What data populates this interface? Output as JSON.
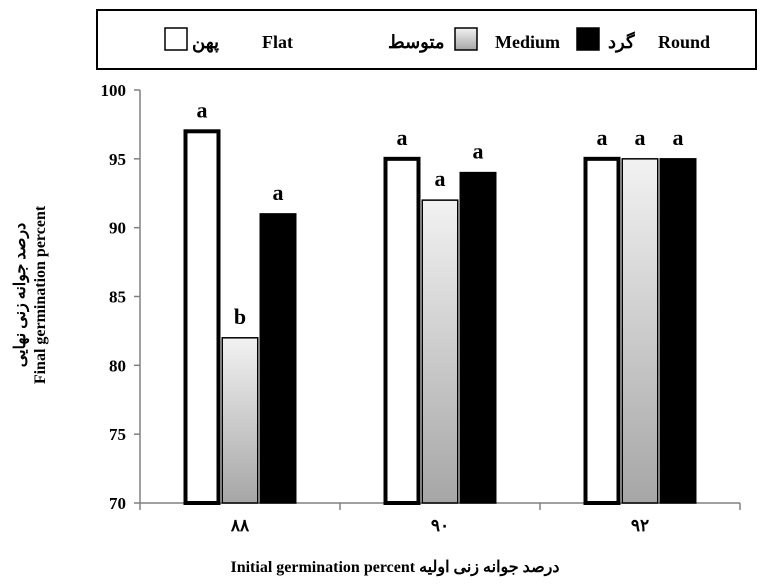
{
  "chart_data": {
    "type": "bar",
    "categories": [
      "۸۸",
      "۹۰",
      "۹۲"
    ],
    "series": [
      {
        "name": "Flat",
        "name_fa": "پهن",
        "values": [
          97,
          95,
          95
        ],
        "fill": "white",
        "labels": [
          "a",
          "a",
          "a"
        ]
      },
      {
        "name": "Medium",
        "name_fa": "متوسط",
        "values": [
          82,
          92,
          95
        ],
        "fill": "gradient-gray",
        "labels": [
          "b",
          "a",
          "a"
        ]
      },
      {
        "name": "Round",
        "name_fa": "گرد",
        "values": [
          91,
          94,
          95
        ],
        "fill": "black",
        "labels": [
          "a",
          "a",
          "a"
        ]
      }
    ],
    "ylim": [
      70,
      100
    ],
    "yticks": [
      70,
      75,
      80,
      85,
      90,
      95,
      100
    ],
    "ylabel_fa": "درصد جوانه زنی نهایی",
    "ylabel_en": "Final germination percent",
    "xlabel": "Initial germination percent درصد جوانه زنی اولیه",
    "legend_position": "top",
    "grid": false
  },
  "colors": {
    "axis": "#808080",
    "black": "#000000",
    "white": "#ffffff",
    "gray_light": "#f2f2f2",
    "gray_dark": "#a6a6a6"
  }
}
